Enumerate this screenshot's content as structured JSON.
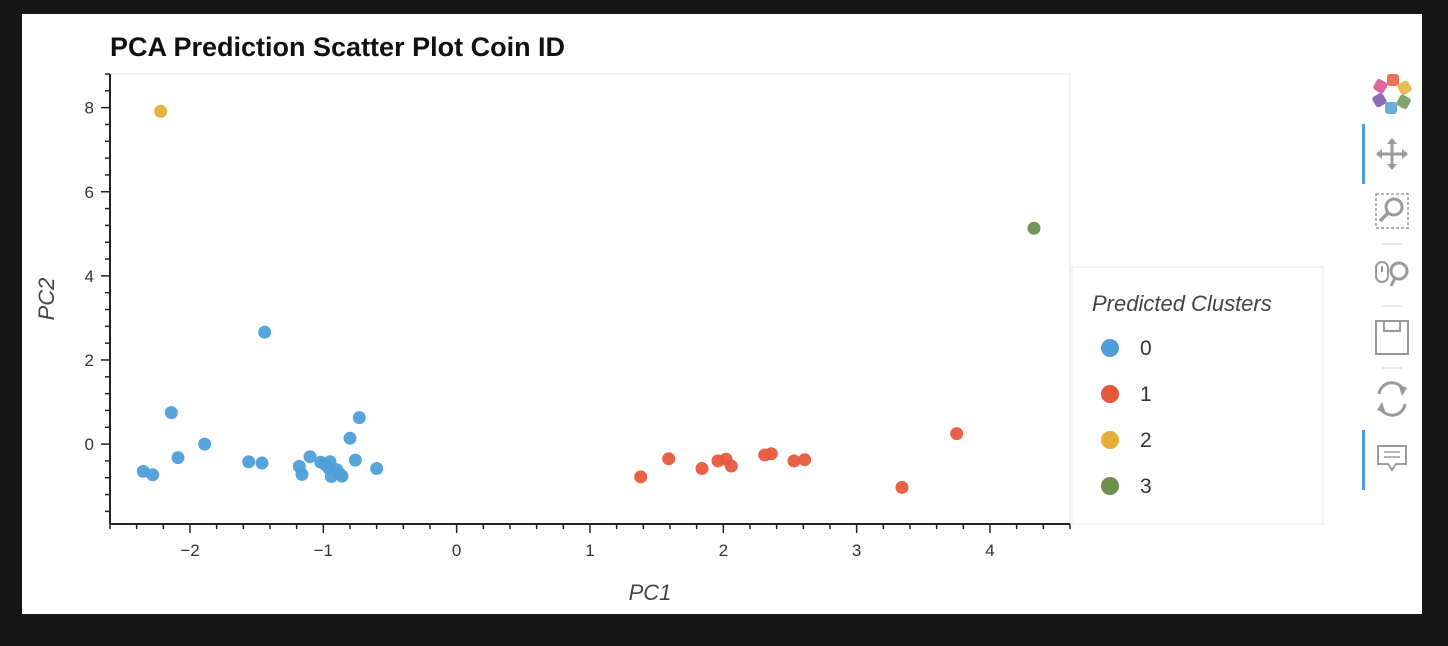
{
  "chart_data": {
    "type": "scatter",
    "title": "PCA Prediction Scatter Plot Coin ID",
    "xlabel": "PC1",
    "ylabel": "PC2",
    "xlim": [
      -2.6,
      4.6
    ],
    "ylim": [
      -1.9,
      8.8
    ],
    "x_ticks": [
      -2,
      -1,
      0,
      1,
      2,
      3,
      4
    ],
    "x_tick_labels": [
      "−2",
      "−1",
      "0",
      "1",
      "2",
      "3",
      "4"
    ],
    "y_ticks": [
      0,
      2,
      4,
      6,
      8
    ],
    "y_tick_labels": [
      "0",
      "2",
      "4",
      "6",
      "8"
    ],
    "grid": false,
    "legend": {
      "title": "Predicted Clusters",
      "placement": "right"
    },
    "series": [
      {
        "name": "0",
        "color": "#4e9fd8",
        "points": [
          [
            -2.35,
            -0.65
          ],
          [
            -2.28,
            -0.73
          ],
          [
            -2.14,
            0.75
          ],
          [
            -2.09,
            -0.32
          ],
          [
            -1.89,
            0.0
          ],
          [
            -1.56,
            -0.42
          ],
          [
            -1.46,
            -0.45
          ],
          [
            -1.44,
            2.66
          ],
          [
            -1.18,
            -0.53
          ],
          [
            -1.16,
            -0.72
          ],
          [
            -1.1,
            -0.3
          ],
          [
            -1.02,
            -0.43
          ],
          [
            -0.99,
            -0.48
          ],
          [
            -0.96,
            -0.57
          ],
          [
            -0.95,
            -0.42
          ],
          [
            -0.94,
            -0.77
          ],
          [
            -0.9,
            -0.61
          ],
          [
            -0.88,
            -0.7
          ],
          [
            -0.86,
            -0.76
          ],
          [
            -0.8,
            0.14
          ],
          [
            -0.76,
            -0.38
          ],
          [
            -0.73,
            0.63
          ],
          [
            -0.6,
            -0.58
          ]
        ]
      },
      {
        "name": "1",
        "color": "#e8583d",
        "points": [
          [
            1.38,
            -0.78
          ],
          [
            1.59,
            -0.35
          ],
          [
            1.84,
            -0.58
          ],
          [
            1.96,
            -0.4
          ],
          [
            2.02,
            -0.36
          ],
          [
            2.06,
            -0.52
          ],
          [
            2.31,
            -0.26
          ],
          [
            2.36,
            -0.23
          ],
          [
            2.53,
            -0.4
          ],
          [
            2.61,
            -0.37
          ],
          [
            3.34,
            -1.03
          ],
          [
            3.75,
            0.25
          ]
        ]
      },
      {
        "name": "2",
        "color": "#e5ae38",
        "points": [
          [
            -2.22,
            7.91
          ]
        ]
      },
      {
        "name": "3",
        "color": "#6d904f",
        "points": [
          [
            4.33,
            5.13
          ]
        ]
      }
    ]
  },
  "toolbar": {
    "items": [
      {
        "name": "bokeh-logo-icon",
        "interactable": false
      },
      {
        "name": "pan-tool-icon",
        "active": true
      },
      {
        "name": "box-zoom-tool-icon",
        "active": false
      },
      {
        "name": "wheel-zoom-tool-icon",
        "active": false
      },
      {
        "name": "save-tool-icon",
        "active": false
      },
      {
        "name": "reset-tool-icon",
        "active": false
      },
      {
        "name": "hover-tool-icon",
        "active": true
      }
    ],
    "active_color": "#4f9fe0"
  }
}
